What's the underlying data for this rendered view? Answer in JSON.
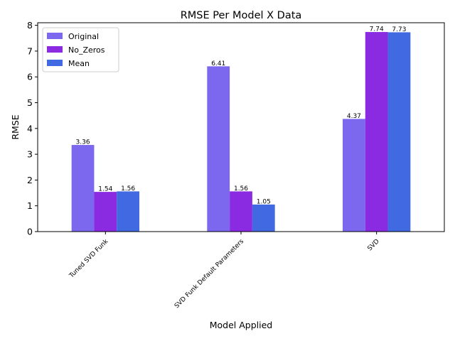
{
  "chart_data": {
    "type": "bar",
    "title": "RMSE Per Model X Data",
    "xlabel": "Model Applied",
    "ylabel": "RMSE",
    "categories": [
      "Tuned SVD Funk",
      "SVD Funk Default Parameters",
      "SVD"
    ],
    "series": [
      {
        "name": "Original",
        "values": [
          3.36,
          6.41,
          4.37
        ],
        "color": "#7B68EE"
      },
      {
        "name": "No_Zeros",
        "values": [
          1.54,
          1.56,
          7.74
        ],
        "color": "#8A2BE2"
      },
      {
        "name": "Mean",
        "values": [
          1.56,
          1.05,
          7.73
        ],
        "color": "#4169E1"
      }
    ],
    "ylim": [
      0,
      8.1
    ],
    "yticks": [
      0,
      1,
      2,
      3,
      4,
      5,
      6,
      7,
      8
    ],
    "grid": false,
    "legend_position": "top-left"
  }
}
